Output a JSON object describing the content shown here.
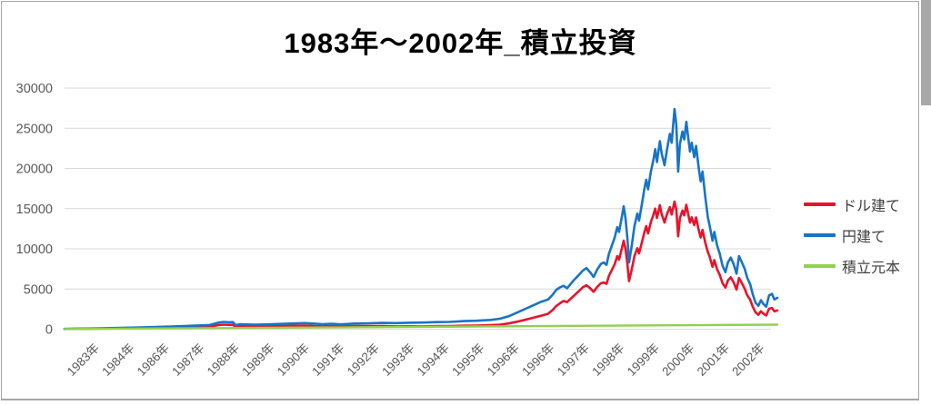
{
  "chart_data": {
    "type": "line",
    "title": "1983年〜2002年_積立投資",
    "x_range": [
      1983.0,
      2002.9
    ],
    "x_axis": {
      "labels": [
        "1983年",
        "1984年",
        "1986年",
        "1987年",
        "1988年",
        "1989年",
        "1990年",
        "1991年",
        "1992年",
        "1993年",
        "1994年",
        "1995年",
        "1996年",
        "1996年",
        "1997年",
        "1998年",
        "1999年",
        "2000年",
        "2001年",
        "2002年"
      ]
    },
    "y_axis": {
      "min": 0,
      "max": 30000,
      "step": 5000,
      "ticks": [
        0,
        5000,
        10000,
        15000,
        20000,
        25000,
        30000
      ]
    },
    "grid": "horizontal",
    "legend_position": "right",
    "series": [
      {
        "name": "ドル建て",
        "color": "#e8132a",
        "points": [
          [
            1983.0,
            24
          ],
          [
            1984.0,
            75
          ],
          [
            1985.0,
            140
          ],
          [
            1986.0,
            220
          ],
          [
            1986.5,
            280
          ],
          [
            1987.05,
            320
          ],
          [
            1987.3,
            510
          ],
          [
            1987.45,
            560
          ],
          [
            1987.6,
            535
          ],
          [
            1987.7,
            545
          ],
          [
            1987.78,
            310
          ],
          [
            1987.9,
            380
          ],
          [
            1988.3,
            340
          ],
          [
            1988.8,
            375
          ],
          [
            1989.3,
            415
          ],
          [
            1989.7,
            450
          ],
          [
            1989.95,
            410
          ],
          [
            1990.2,
            355
          ],
          [
            1990.45,
            385
          ],
          [
            1990.7,
            335
          ],
          [
            1991.1,
            380
          ],
          [
            1991.5,
            385
          ],
          [
            1991.85,
            380
          ],
          [
            1992.25,
            355
          ],
          [
            1992.6,
            360
          ],
          [
            1993.0,
            350
          ],
          [
            1993.4,
            380
          ],
          [
            1993.75,
            390
          ],
          [
            1994.15,
            430
          ],
          [
            1994.5,
            455
          ],
          [
            1994.9,
            505
          ],
          [
            1995.15,
            570
          ],
          [
            1995.4,
            710
          ],
          [
            1995.65,
            945
          ],
          [
            1995.9,
            1210
          ],
          [
            1996.1,
            1430
          ],
          [
            1996.3,
            1670
          ],
          [
            1996.5,
            1920
          ],
          [
            1996.63,
            2410
          ],
          [
            1996.73,
            2890
          ],
          [
            1996.83,
            3220
          ],
          [
            1996.93,
            3510
          ],
          [
            1997.03,
            3370
          ],
          [
            1997.2,
            4080
          ],
          [
            1997.35,
            4690
          ],
          [
            1997.47,
            5220
          ],
          [
            1997.57,
            5470
          ],
          [
            1997.67,
            5110
          ],
          [
            1997.77,
            4650
          ],
          [
            1997.87,
            5250
          ],
          [
            1997.97,
            5710
          ],
          [
            1998.05,
            5810
          ],
          [
            1998.13,
            5640
          ],
          [
            1998.2,
            6630
          ],
          [
            1998.28,
            7380
          ],
          [
            1998.36,
            8090
          ],
          [
            1998.43,
            9080
          ],
          [
            1998.48,
            8650
          ],
          [
            1998.56,
            10080
          ],
          [
            1998.61,
            11020
          ],
          [
            1998.66,
            9940
          ],
          [
            1998.71,
            8280
          ],
          [
            1998.76,
            5980
          ],
          [
            1998.84,
            7510
          ],
          [
            1998.91,
            9090
          ],
          [
            1998.99,
            10080
          ],
          [
            1999.04,
            9450
          ],
          [
            1999.12,
            10840
          ],
          [
            1999.19,
            12080
          ],
          [
            1999.24,
            12830
          ],
          [
            1999.29,
            11920
          ],
          [
            1999.37,
            13330
          ],
          [
            1999.44,
            14240
          ],
          [
            1999.49,
            15010
          ],
          [
            1999.54,
            13830
          ],
          [
            1999.62,
            15440
          ],
          [
            1999.67,
            14340
          ],
          [
            1999.75,
            13260
          ],
          [
            1999.82,
            14340
          ],
          [
            1999.9,
            15190
          ],
          [
            1999.95,
            14270
          ],
          [
            2000.03,
            15890
          ],
          [
            2000.08,
            14860
          ],
          [
            2000.13,
            11560
          ],
          [
            2000.18,
            13800
          ],
          [
            2000.25,
            14760
          ],
          [
            2000.3,
            14160
          ],
          [
            2000.36,
            15480
          ],
          [
            2000.41,
            14340
          ],
          [
            2000.46,
            13260
          ],
          [
            2000.51,
            13920
          ],
          [
            2000.58,
            12950
          ],
          [
            2000.63,
            13910
          ],
          [
            2000.71,
            12240
          ],
          [
            2000.76,
            11410
          ],
          [
            2000.81,
            12350
          ],
          [
            2000.89,
            10740
          ],
          [
            2000.96,
            9590
          ],
          [
            2001.01,
            9030
          ],
          [
            2001.09,
            7760
          ],
          [
            2001.14,
            8590
          ],
          [
            2001.22,
            7440
          ],
          [
            2001.29,
            6770
          ],
          [
            2001.37,
            5730
          ],
          [
            2001.45,
            5180
          ],
          [
            2001.52,
            6060
          ],
          [
            2001.6,
            6450
          ],
          [
            2001.68,
            5830
          ],
          [
            2001.76,
            4930
          ],
          [
            2001.83,
            6370
          ],
          [
            2001.91,
            5730
          ],
          [
            2001.99,
            5030
          ],
          [
            2002.06,
            4220
          ],
          [
            2002.14,
            3670
          ],
          [
            2002.21,
            2840
          ],
          [
            2002.29,
            2100
          ],
          [
            2002.37,
            1800
          ],
          [
            2002.44,
            2230
          ],
          [
            2002.52,
            1910
          ],
          [
            2002.59,
            1710
          ],
          [
            2002.67,
            2540
          ],
          [
            2002.75,
            2640
          ],
          [
            2002.82,
            2220
          ],
          [
            2002.9,
            2340
          ]
        ]
      },
      {
        "name": "円建て",
        "color": "#1774c8",
        "points": [
          [
            1983.0,
            30
          ],
          [
            1984.0,
            100
          ],
          [
            1985.0,
            200
          ],
          [
            1986.0,
            330
          ],
          [
            1986.5,
            420
          ],
          [
            1987.05,
            520
          ],
          [
            1987.3,
            820
          ],
          [
            1987.45,
            900
          ],
          [
            1987.6,
            860
          ],
          [
            1987.7,
            880
          ],
          [
            1987.78,
            500
          ],
          [
            1987.9,
            620
          ],
          [
            1988.3,
            560
          ],
          [
            1988.8,
            620
          ],
          [
            1989.3,
            700
          ],
          [
            1989.7,
            760
          ],
          [
            1989.95,
            700
          ],
          [
            1990.2,
            620
          ],
          [
            1990.45,
            680
          ],
          [
            1990.7,
            600
          ],
          [
            1991.1,
            700
          ],
          [
            1991.5,
            740
          ],
          [
            1991.85,
            780
          ],
          [
            1992.25,
            760
          ],
          [
            1992.6,
            800
          ],
          [
            1993.0,
            820
          ],
          [
            1993.4,
            880
          ],
          [
            1993.75,
            900
          ],
          [
            1994.15,
            1000
          ],
          [
            1994.5,
            1050
          ],
          [
            1994.9,
            1150
          ],
          [
            1995.15,
            1300
          ],
          [
            1995.4,
            1600
          ],
          [
            1995.65,
            2100
          ],
          [
            1995.9,
            2600
          ],
          [
            1996.1,
            3000
          ],
          [
            1996.3,
            3400
          ],
          [
            1996.5,
            3700
          ],
          [
            1996.63,
            4300
          ],
          [
            1996.73,
            4900
          ],
          [
            1996.83,
            5200
          ],
          [
            1996.93,
            5400
          ],
          [
            1997.03,
            5100
          ],
          [
            1997.2,
            6000
          ],
          [
            1997.35,
            6700
          ],
          [
            1997.47,
            7300
          ],
          [
            1997.57,
            7600
          ],
          [
            1997.67,
            7100
          ],
          [
            1997.77,
            6500
          ],
          [
            1997.87,
            7400
          ],
          [
            1997.97,
            8100
          ],
          [
            1998.05,
            8300
          ],
          [
            1998.13,
            8000
          ],
          [
            1998.2,
            9400
          ],
          [
            1998.28,
            10400
          ],
          [
            1998.36,
            11400
          ],
          [
            1998.43,
            12700
          ],
          [
            1998.48,
            12100
          ],
          [
            1998.56,
            14000
          ],
          [
            1998.61,
            15300
          ],
          [
            1998.66,
            13800
          ],
          [
            1998.71,
            11500
          ],
          [
            1998.76,
            8300
          ],
          [
            1998.84,
            10500
          ],
          [
            1998.91,
            12800
          ],
          [
            1998.99,
            14400
          ],
          [
            1999.04,
            13500
          ],
          [
            1999.12,
            15600
          ],
          [
            1999.19,
            17500
          ],
          [
            1999.24,
            18600
          ],
          [
            1999.29,
            17400
          ],
          [
            1999.37,
            19600
          ],
          [
            1999.44,
            21100
          ],
          [
            1999.49,
            22400
          ],
          [
            1999.54,
            20800
          ],
          [
            1999.62,
            23400
          ],
          [
            1999.67,
            21900
          ],
          [
            1999.75,
            20400
          ],
          [
            1999.82,
            22400
          ],
          [
            1999.9,
            24300
          ],
          [
            1999.95,
            23200
          ],
          [
            2000.03,
            27400
          ],
          [
            2000.08,
            25400
          ],
          [
            2000.13,
            19600
          ],
          [
            2000.18,
            23000
          ],
          [
            2000.25,
            24600
          ],
          [
            2000.3,
            23600
          ],
          [
            2000.36,
            25800
          ],
          [
            2000.41,
            23900
          ],
          [
            2000.46,
            22100
          ],
          [
            2000.51,
            23200
          ],
          [
            2000.58,
            21400
          ],
          [
            2000.63,
            22800
          ],
          [
            2000.71,
            19900
          ],
          [
            2000.76,
            18400
          ],
          [
            2000.81,
            19600
          ],
          [
            2000.89,
            16400
          ],
          [
            2000.96,
            13900
          ],
          [
            2001.01,
            12900
          ],
          [
            2001.09,
            11000
          ],
          [
            2001.14,
            12100
          ],
          [
            2001.22,
            10400
          ],
          [
            2001.29,
            9400
          ],
          [
            2001.37,
            7900
          ],
          [
            2001.45,
            7100
          ],
          [
            2001.52,
            8300
          ],
          [
            2001.6,
            8900
          ],
          [
            2001.68,
            8100
          ],
          [
            2001.76,
            6900
          ],
          [
            2001.83,
            9100
          ],
          [
            2001.91,
            8300
          ],
          [
            2001.99,
            7500
          ],
          [
            2002.06,
            6400
          ],
          [
            2002.14,
            5600
          ],
          [
            2002.21,
            4400
          ],
          [
            2002.29,
            3300
          ],
          [
            2002.37,
            2900
          ],
          [
            2002.44,
            3600
          ],
          [
            2002.52,
            3100
          ],
          [
            2002.59,
            2800
          ],
          [
            2002.67,
            4200
          ],
          [
            2002.75,
            4400
          ],
          [
            2002.82,
            3700
          ],
          [
            2002.9,
            3900
          ]
        ]
      },
      {
        "name": "積立元本",
        "color": "#92d050",
        "points": [
          [
            1983.0,
            20
          ],
          [
            2002.9,
            560
          ]
        ]
      }
    ]
  },
  "colors": {
    "gridline": "#d9d9d9",
    "axis_label": "#595959",
    "legend_text": "#404040",
    "title_text": "#000000",
    "frame_border": "#a6a6a6"
  }
}
